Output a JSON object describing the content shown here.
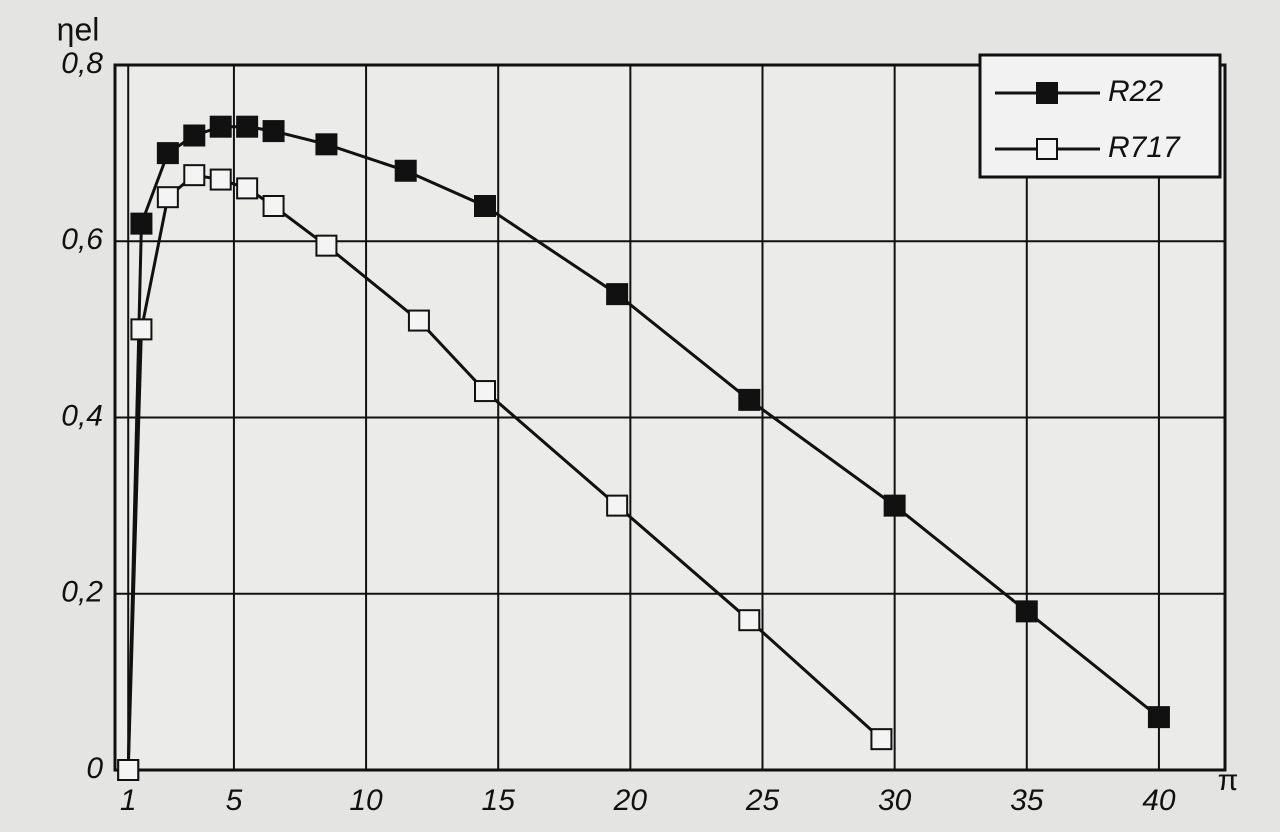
{
  "chart_data": {
    "type": "line",
    "y_label": "ηel",
    "x_label": "π",
    "xlim": [
      0.5,
      42.5
    ],
    "ylim": [
      0,
      0.8
    ],
    "xticks": [
      1,
      5,
      10,
      15,
      20,
      25,
      30,
      35,
      40
    ],
    "yticks": [
      0,
      {
        "value": 0.2,
        "label": "0,2"
      },
      {
        "value": 0.4,
        "label": "0,4"
      },
      {
        "value": 0.6,
        "label": "0,6"
      },
      {
        "value": 0.8,
        "label": "0,8"
      }
    ],
    "grid": true,
    "legend": "upper right",
    "series": [
      {
        "name": "R22",
        "color": "#111111",
        "marker": "filled-square",
        "x": [
          1,
          1.5,
          2.5,
          3.5,
          4.5,
          5.5,
          6.5,
          8.5,
          11.5,
          14.5,
          19.5,
          24.5,
          30,
          35,
          40
        ],
        "values": [
          0,
          0.62,
          0.7,
          0.72,
          0.73,
          0.73,
          0.725,
          0.71,
          0.68,
          0.64,
          0.54,
          0.42,
          0.3,
          0.18,
          0.06
        ]
      },
      {
        "name": "R717",
        "color": "#111111",
        "marker": "open-square",
        "x": [
          1,
          1.5,
          2.5,
          3.5,
          4.5,
          5.5,
          6.5,
          8.5,
          12,
          14.5,
          19.5,
          24.5,
          29.5
        ],
        "values": [
          0,
          0.5,
          0.65,
          0.675,
          0.67,
          0.66,
          0.64,
          0.595,
          0.51,
          0.43,
          0.3,
          0.17,
          0.035
        ]
      }
    ]
  }
}
